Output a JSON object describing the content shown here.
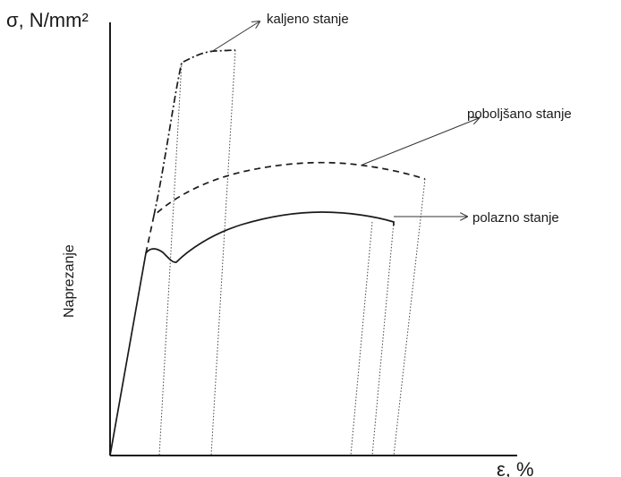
{
  "diagram": {
    "y_axis_label": "σ, N/mm²",
    "x_axis_label": "ε, %",
    "y_axis_title": "Naprezanje",
    "curves": [
      {
        "label": "kaljeno stanje",
        "line_style": "dash-dot"
      },
      {
        "label": "poboljšano stanje",
        "line_style": "dashed"
      },
      {
        "label": "polazno stanje",
        "line_style": "solid"
      }
    ],
    "unloading_line_style": "dotted",
    "colors": {
      "ink": "#1a1a1a",
      "background": "#ffffff"
    }
  }
}
